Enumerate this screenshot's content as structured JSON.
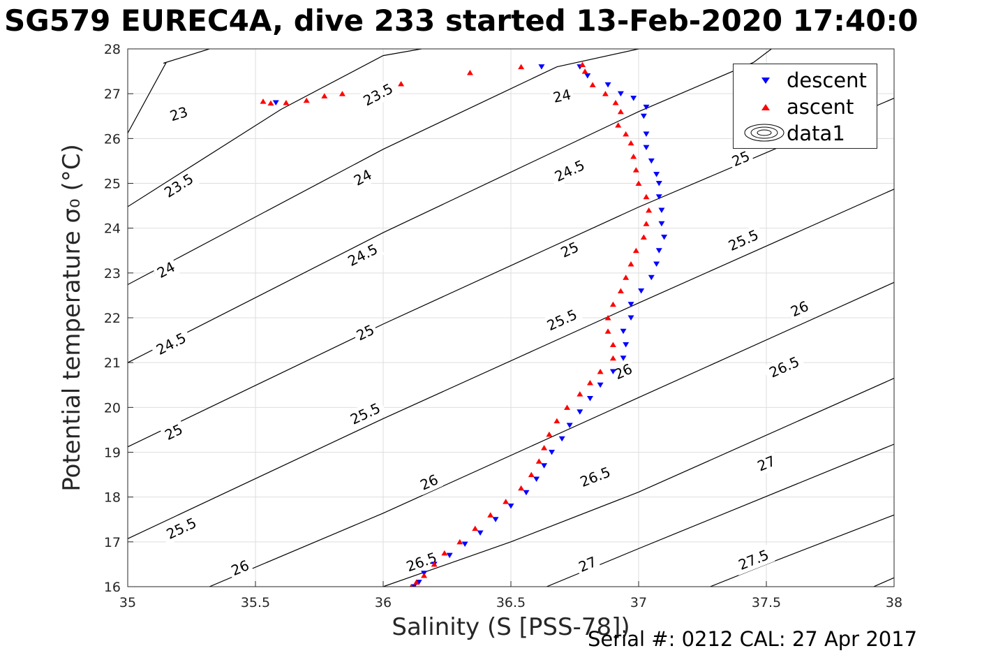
{
  "title": "SG579 EUREC4A, dive 233 started 13-Feb-2020 17:40:0",
  "footer": "Serial #: 0212  CAL: 27 Apr 2017",
  "chart_data": {
    "type": "scatter",
    "xlabel": "Salinity (S [PSS-78])",
    "ylabel": "Potential temperature σ₀ (°C)",
    "xlim": [
      35,
      38
    ],
    "ylim": [
      16,
      28
    ],
    "xticks": [
      "35",
      "35.5",
      "36",
      "36.5",
      "37",
      "37.5",
      "38"
    ],
    "yticks": [
      "16",
      "17",
      "18",
      "19",
      "20",
      "21",
      "22",
      "23",
      "24",
      "25",
      "26",
      "27",
      "28"
    ],
    "grid": true,
    "legend_position": "top-right",
    "legend": [
      "descent",
      "ascent",
      "data1"
    ],
    "contour_series_name": "data1",
    "contours": [
      {
        "level": 23,
        "points": [
          [
            35,
            26.12
          ],
          [
            35.15,
            27.69
          ],
          [
            35.14,
            27.68
          ],
          [
            35.32,
            28
          ]
        ],
        "labels": [
          [
            35.2,
            26.55
          ]
        ]
      },
      {
        "level": 23.5,
        "points": [
          [
            35,
            24.48
          ],
          [
            35.6,
            26.65
          ],
          [
            36,
            27.85
          ],
          [
            36.15,
            28
          ]
        ],
        "labels": [
          [
            35.2,
            24.95
          ],
          [
            35.98,
            26.98
          ]
        ]
      },
      {
        "level": 24,
        "points": [
          [
            35,
            22.74
          ],
          [
            36,
            25.76
          ],
          [
            36.68,
            27.6
          ],
          [
            37,
            28
          ]
        ],
        "labels": [
          [
            35.15,
            23.07
          ],
          [
            35.92,
            25.13
          ],
          [
            36.7,
            26.95
          ]
        ]
      },
      {
        "level": 24.5,
        "points": [
          [
            35,
            21
          ],
          [
            36,
            23.9
          ],
          [
            37,
            26.6
          ],
          [
            37.45,
            27.7
          ],
          [
            37.52,
            28
          ]
        ],
        "labels": [
          [
            35.17,
            21.42
          ],
          [
            35.92,
            23.4
          ],
          [
            36.73,
            25.28
          ]
        ]
      },
      {
        "level": 25,
        "points": [
          [
            35,
            19.12
          ],
          [
            36,
            21.86
          ],
          [
            37,
            24.47
          ],
          [
            38,
            26.9
          ]
        ],
        "labels": [
          [
            35.18,
            19.45
          ],
          [
            35.93,
            21.67
          ],
          [
            36.73,
            23.52
          ],
          [
            37.4,
            25.55
          ]
        ]
      },
      {
        "level": 25.5,
        "points": [
          [
            35,
            17.07
          ],
          [
            36,
            19.75
          ],
          [
            37,
            22.33
          ],
          [
            38,
            24.87
          ]
        ],
        "labels": [
          [
            35.21,
            17.3
          ],
          [
            35.93,
            19.86
          ],
          [
            36.7,
            21.95
          ],
          [
            37.41,
            23.73
          ]
        ]
      },
      {
        "level": 26,
        "points": [
          [
            35.32,
            16
          ],
          [
            36,
            17.64
          ],
          [
            37,
            20.22
          ],
          [
            38,
            22.79
          ]
        ],
        "labels": [
          [
            35.44,
            16.42
          ],
          [
            36.18,
            18.33
          ],
          [
            36.94,
            20.8
          ],
          [
            37.63,
            22.2
          ]
        ]
      },
      {
        "level": 26.5,
        "points": [
          [
            36.0,
            16.0
          ],
          [
            36.5,
            17.0
          ],
          [
            37,
            18.11
          ],
          [
            38,
            20.65
          ]
        ],
        "labels": [
          [
            36.15,
            16.55
          ],
          [
            36.83,
            18.45
          ],
          [
            37.57,
            20.9
          ]
        ]
      },
      {
        "level": 27,
        "points": [
          [
            36.64,
            16
          ],
          [
            37,
            16.85
          ],
          [
            38,
            19.18
          ]
        ],
        "labels": [
          [
            36.8,
            16.5
          ],
          [
            37.5,
            18.75
          ]
        ]
      },
      {
        "level": 27.5,
        "points": [
          [
            37.28,
            16
          ],
          [
            37.5,
            16.5
          ],
          [
            38,
            17.6
          ]
        ],
        "labels": [
          [
            37.45,
            16.6
          ]
        ]
      },
      {
        "level": 28,
        "points": [
          [
            37.92,
            16
          ],
          [
            38,
            16.2
          ]
        ],
        "labels": []
      }
    ],
    "series": [
      {
        "name": "descent",
        "color": "#0000ff",
        "marker": "triangle-down",
        "points": [
          [
            36.12,
            16.0
          ],
          [
            36.14,
            16.1
          ],
          [
            36.16,
            16.3
          ],
          [
            36.2,
            16.5
          ],
          [
            36.26,
            16.7
          ],
          [
            36.32,
            16.95
          ],
          [
            36.38,
            17.2
          ],
          [
            36.44,
            17.5
          ],
          [
            36.5,
            17.8
          ],
          [
            36.56,
            18.1
          ],
          [
            36.6,
            18.4
          ],
          [
            36.63,
            18.7
          ],
          [
            36.66,
            19.0
          ],
          [
            36.7,
            19.3
          ],
          [
            36.73,
            19.6
          ],
          [
            36.77,
            19.9
          ],
          [
            36.81,
            20.2
          ],
          [
            36.85,
            20.5
          ],
          [
            36.9,
            20.8
          ],
          [
            36.94,
            21.1
          ],
          [
            36.95,
            21.4
          ],
          [
            36.94,
            21.7
          ],
          [
            36.97,
            22.0
          ],
          [
            36.97,
            22.3
          ],
          [
            37.01,
            22.6
          ],
          [
            37.05,
            22.9
          ],
          [
            37.07,
            23.2
          ],
          [
            37.08,
            23.5
          ],
          [
            37.1,
            23.8
          ],
          [
            37.09,
            24.1
          ],
          [
            37.09,
            24.4
          ],
          [
            37.08,
            24.7
          ],
          [
            37.08,
            25.0
          ],
          [
            37.07,
            25.2
          ],
          [
            37.05,
            25.5
          ],
          [
            37.03,
            25.8
          ],
          [
            37.03,
            26.1
          ],
          [
            37.02,
            26.5
          ],
          [
            37.03,
            26.7
          ],
          [
            36.98,
            26.9
          ],
          [
            36.93,
            27.0
          ],
          [
            36.88,
            27.2
          ],
          [
            36.8,
            27.4
          ],
          [
            36.77,
            27.6
          ],
          [
            36.62,
            27.6
          ],
          [
            35.58,
            26.8
          ]
        ]
      },
      {
        "name": "ascent",
        "color": "#ff0000",
        "marker": "triangle-up",
        "points": [
          [
            36.11,
            16.0
          ],
          [
            36.13,
            16.1
          ],
          [
            36.16,
            16.25
          ],
          [
            36.2,
            16.5
          ],
          [
            36.24,
            16.75
          ],
          [
            36.3,
            17.0
          ],
          [
            36.36,
            17.3
          ],
          [
            36.42,
            17.6
          ],
          [
            36.48,
            17.9
          ],
          [
            36.54,
            18.2
          ],
          [
            36.58,
            18.5
          ],
          [
            36.61,
            18.8
          ],
          [
            36.63,
            19.1
          ],
          [
            36.65,
            19.4
          ],
          [
            36.68,
            19.7
          ],
          [
            36.72,
            20.0
          ],
          [
            36.77,
            20.3
          ],
          [
            36.81,
            20.55
          ],
          [
            36.85,
            20.8
          ],
          [
            36.9,
            21.1
          ],
          [
            36.9,
            21.4
          ],
          [
            36.88,
            21.7
          ],
          [
            36.88,
            22.0
          ],
          [
            36.9,
            22.3
          ],
          [
            36.93,
            22.6
          ],
          [
            36.95,
            22.9
          ],
          [
            36.97,
            23.2
          ],
          [
            36.99,
            23.5
          ],
          [
            37.02,
            23.8
          ],
          [
            37.03,
            24.1
          ],
          [
            37.04,
            24.4
          ],
          [
            37.03,
            24.7
          ],
          [
            37.0,
            25.0
          ],
          [
            36.99,
            25.3
          ],
          [
            36.98,
            25.6
          ],
          [
            36.97,
            25.9
          ],
          [
            36.95,
            26.1
          ],
          [
            36.92,
            26.3
          ],
          [
            36.93,
            26.6
          ],
          [
            36.91,
            26.8
          ],
          [
            36.87,
            27.0
          ],
          [
            36.82,
            27.2
          ],
          [
            36.79,
            27.5
          ],
          [
            36.78,
            27.65
          ],
          [
            36.54,
            27.6
          ],
          [
            36.34,
            27.47
          ],
          [
            36.07,
            27.22
          ],
          [
            35.84,
            27.0
          ],
          [
            35.77,
            26.95
          ],
          [
            35.7,
            26.85
          ],
          [
            35.62,
            26.8
          ],
          [
            35.56,
            26.79
          ],
          [
            35.53,
            26.83
          ]
        ]
      }
    ]
  }
}
